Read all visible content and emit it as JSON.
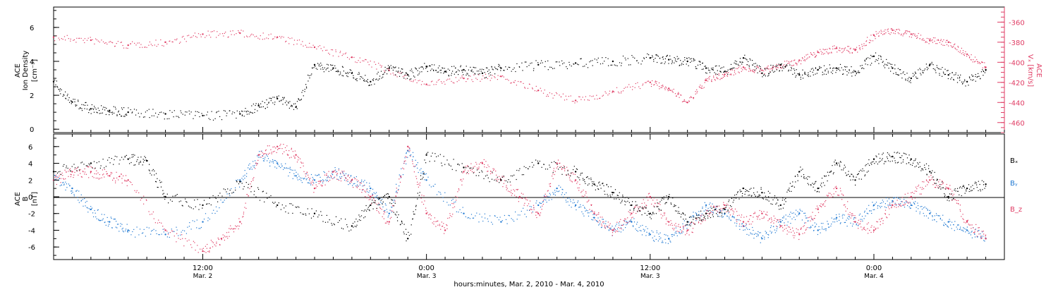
{
  "colors": {
    "black": "#000000",
    "pink": "#e03c64",
    "blue": "#1e78d2"
  },
  "top_panel": {
    "ylabel_line1": "ACE",
    "ylabel_line2": "Ion Density",
    "ylabel_unit": "[cm⁻³]",
    "yticks": [
      "0",
      "2",
      "4",
      "6"
    ],
    "right_label_line1": "ACE",
    "right_label_line2": "Vₓ [km/s]",
    "right_yticks": [
      "-360",
      "-380",
      "-400",
      "-420",
      "-440",
      "-460"
    ]
  },
  "bottom_panel": {
    "ylabel_line1": "ACE",
    "ylabel_line2": "B",
    "ylabel_unit": "[nT]",
    "yticks": [
      "6",
      "4",
      "2",
      "0",
      "-2",
      "-4",
      "-6"
    ],
    "legend": [
      {
        "label": "Bₓ",
        "color": "#000000"
      },
      {
        "label": "Bᵧ",
        "color": "#1e78d2"
      },
      {
        "label": "B_z",
        "color": "#e03c64"
      }
    ]
  },
  "xaxis": {
    "ticks": [
      {
        "label": "12:00",
        "sub": "Mar. 2"
      },
      {
        "label": "0:00",
        "sub": "Mar. 3"
      },
      {
        "label": "12:00",
        "sub": "Mar. 3"
      },
      {
        "label": "0:00",
        "sub": "Mar. 4"
      }
    ],
    "title": "hours:minutes, Mar. 2, 2010 - Mar. 4, 2010"
  },
  "chart_data": [
    {
      "type": "scatter",
      "panel": "top",
      "xunit": "hours since Mar. 2 00:00",
      "xlim": [
        4,
        55
      ],
      "ylim": [
        -0.2,
        7.2
      ],
      "y2lim": [
        -470,
        -345
      ],
      "series": [
        {
          "name": "Ion Density",
          "axis": "left",
          "color": "#000000",
          "x": [
            4,
            5,
            6,
            7,
            8,
            10,
            12,
            14,
            15,
            16,
            17,
            18,
            19,
            20,
            21,
            22,
            23,
            24,
            25,
            26,
            27,
            28,
            30,
            32,
            34,
            36,
            37,
            38,
            39,
            40,
            41,
            42,
            43,
            44,
            45,
            46,
            47,
            48,
            49,
            50,
            51,
            52,
            53,
            54
          ],
          "y": [
            2.8,
            1.6,
            1.2,
            1.1,
            1.0,
            0.9,
            0.8,
            0.9,
            1.4,
            1.8,
            1.3,
            3.8,
            3.6,
            3.3,
            2.8,
            3.6,
            3.2,
            3.7,
            3.4,
            3.5,
            3.3,
            3.6,
            3.8,
            3.9,
            4.0,
            4.2,
            4.1,
            4.0,
            3.6,
            3.4,
            4.2,
            3.3,
            3.8,
            3.2,
            3.5,
            3.6,
            3.4,
            4.3,
            3.6,
            3.0,
            3.8,
            3.2,
            2.8,
            3.5
          ]
        },
        {
          "name": "Vx",
          "axis": "right",
          "color": "#e03c64",
          "x": [
            4,
            6,
            8,
            10,
            12,
            14,
            16,
            18,
            20,
            22,
            24,
            26,
            28,
            30,
            32,
            34,
            36,
            37,
            38,
            39,
            40,
            41,
            42,
            43,
            44,
            45,
            46,
            47,
            48,
            49,
            50,
            51,
            52,
            53,
            54
          ],
          "y": [
            -375,
            -378,
            -383,
            -380,
            -372,
            -371,
            -375,
            -385,
            -395,
            -408,
            -422,
            -416,
            -414,
            -428,
            -438,
            -429,
            -420,
            -426,
            -440,
            -418,
            -412,
            -405,
            -408,
            -403,
            -398,
            -390,
            -386,
            -388,
            -373,
            -368,
            -372,
            -378,
            -380,
            -392,
            -405
          ]
        }
      ]
    },
    {
      "type": "scatter",
      "panel": "bottom",
      "xunit": "hours since Mar. 2 00:00",
      "xlim": [
        4,
        55
      ],
      "ylim": [
        -7.5,
        7.5
      ],
      "series": [
        {
          "name": "Bₓ",
          "color": "#000000",
          "x": [
            4,
            6,
            8,
            9,
            10,
            12,
            14,
            16,
            18,
            20,
            21,
            22,
            23,
            24,
            26,
            28,
            30,
            32,
            33,
            34,
            35,
            36,
            37,
            38,
            39,
            40,
            41,
            42,
            43,
            44,
            45,
            46,
            47,
            48,
            49,
            50,
            51,
            52,
            53,
            54
          ],
          "y": [
            3.0,
            4.0,
            4.5,
            4.3,
            0.0,
            -1.0,
            1.8,
            -1.0,
            -2.0,
            -3.5,
            -1.0,
            0.0,
            -5.0,
            5.0,
            3.5,
            2.0,
            4.0,
            3.0,
            1.5,
            0.5,
            -1.0,
            -2.0,
            0.0,
            -3.0,
            -2.0,
            -1.5,
            1.0,
            0.5,
            -1.0,
            3.0,
            1.0,
            4.0,
            2.0,
            4.5,
            4.8,
            4.5,
            3.0,
            0.0,
            1.0,
            1.5
          ]
        },
        {
          "name": "Bᵧ",
          "color": "#1e78d2",
          "x": [
            4,
            5,
            6,
            7,
            8,
            10,
            12,
            14,
            15,
            16,
            17,
            18,
            19,
            20,
            21,
            22,
            23,
            24,
            26,
            28,
            30,
            31,
            32,
            33,
            34,
            35,
            36,
            37,
            38,
            39,
            40,
            41,
            42,
            43,
            44,
            45,
            46,
            47,
            48,
            49,
            50,
            51,
            52,
            53,
            54
          ],
          "y": [
            2.0,
            1.0,
            -1.5,
            -3.0,
            -4.0,
            -4.5,
            -3.0,
            2.0,
            5.0,
            4.0,
            2.5,
            2.0,
            3.0,
            2.0,
            1.0,
            -2.0,
            5.5,
            2.0,
            -2.0,
            -3.0,
            -1.0,
            1.0,
            -1.0,
            -2.5,
            -4.0,
            -3.0,
            -4.5,
            -5.0,
            -3.0,
            -1.0,
            -2.0,
            -3.5,
            -5.0,
            -3.0,
            -2.0,
            -4.0,
            -2.5,
            -3.0,
            -1.0,
            -0.5,
            -1.0,
            -2.0,
            -3.0,
            -4.0,
            -5.0
          ]
        },
        {
          "name": "B_z",
          "color": "#e03c64",
          "x": [
            4,
            5,
            6,
            7,
            8,
            10,
            12,
            13,
            14,
            15,
            16,
            17,
            18,
            19,
            20,
            21,
            22,
            23,
            24,
            25,
            26,
            27,
            28,
            29,
            30,
            31,
            32,
            33,
            34,
            35,
            36,
            37,
            38,
            39,
            40,
            41,
            42,
            43,
            44,
            45,
            46,
            47,
            48,
            49,
            50,
            51,
            52,
            53,
            54
          ],
          "y": [
            2.0,
            3.0,
            3.0,
            2.5,
            2.0,
            -4.0,
            -6.5,
            -5.0,
            -3.0,
            5.0,
            6.0,
            5.0,
            1.0,
            3.0,
            2.0,
            0.0,
            -3.0,
            6.0,
            -2.0,
            -4.0,
            3.0,
            4.0,
            2.0,
            0.0,
            -2.0,
            4.0,
            2.0,
            -2.0,
            -4.0,
            -2.0,
            0.0,
            -3.0,
            -4.0,
            -2.0,
            -1.0,
            -3.0,
            -2.0,
            -3.5,
            -4.5,
            -1.5,
            1.0,
            -3.0,
            -4.0,
            -1.0,
            0.0,
            2.0,
            1.0,
            -3.0,
            -5.0
          ]
        }
      ]
    }
  ]
}
